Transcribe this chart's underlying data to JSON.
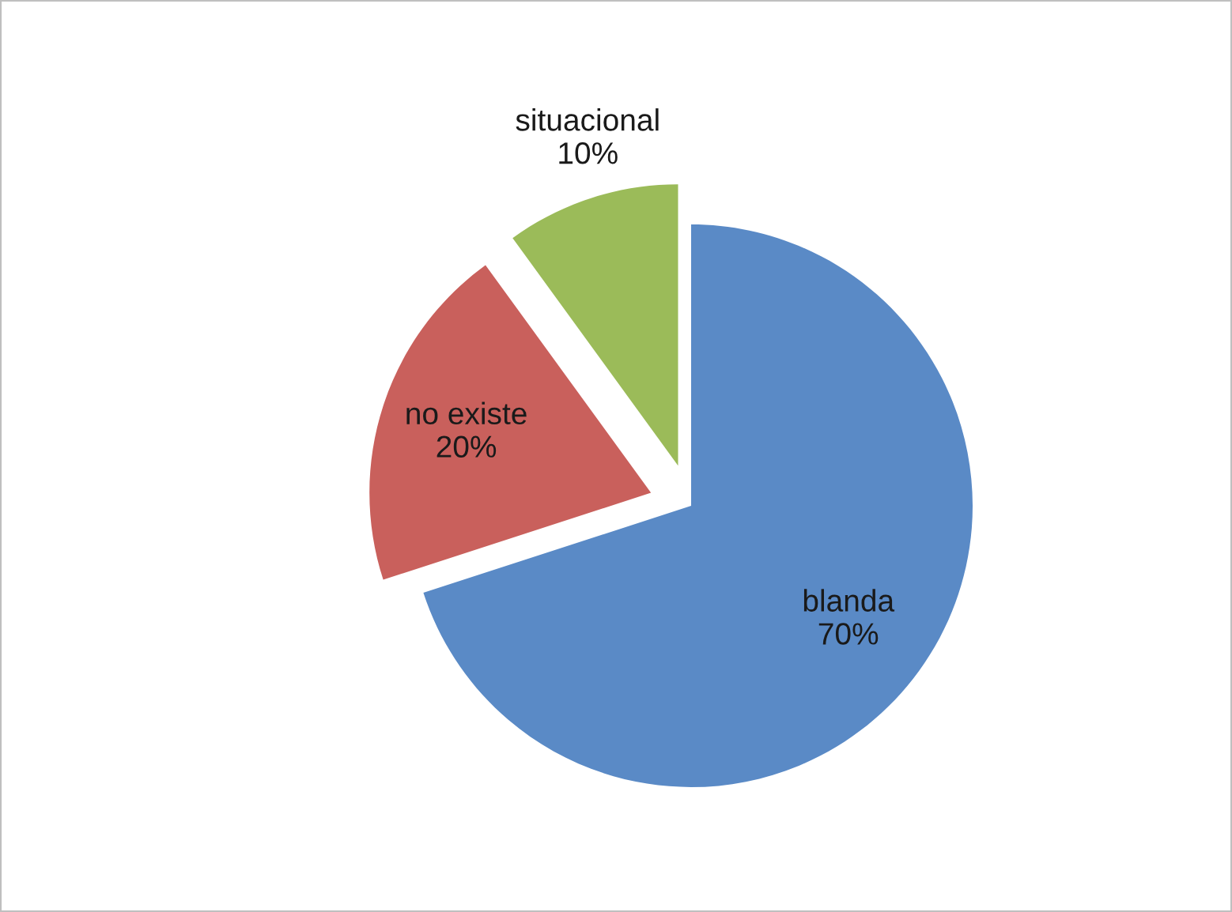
{
  "chart_data": {
    "type": "pie",
    "categories": [
      "blanda",
      "no existe",
      "situacional"
    ],
    "values": [
      70,
      20,
      10
    ],
    "colors": [
      "#5a8ac6",
      "#c9605c",
      "#9bbb59"
    ],
    "value_labels": [
      "70%",
      "20%",
      "10%"
    ]
  }
}
